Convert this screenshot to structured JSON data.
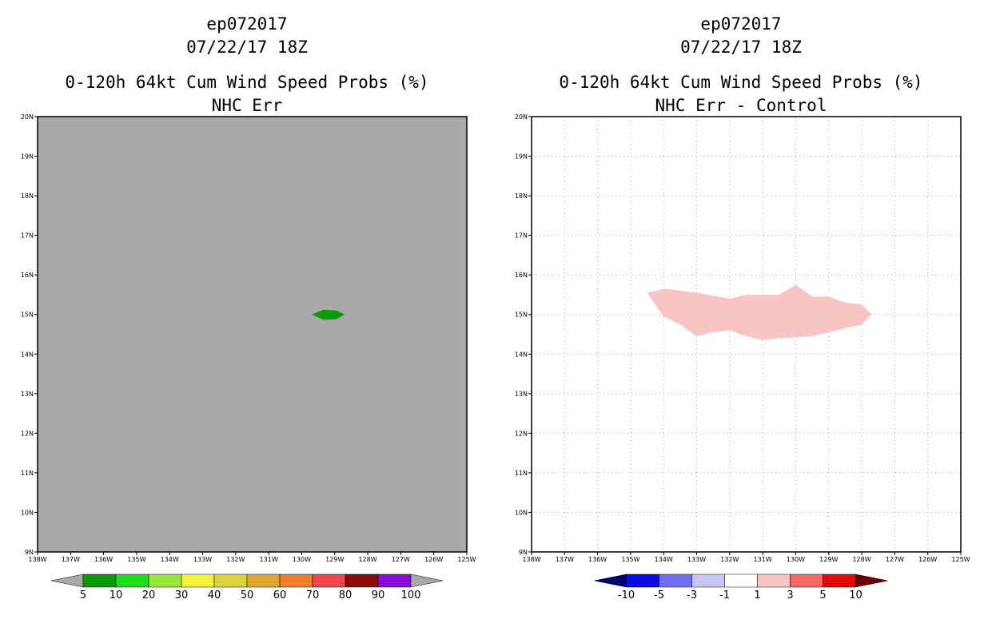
{
  "charts": [
    {
      "id": "left",
      "titles": [
        "ep072017",
        "07/22/17 18Z",
        "0-120h 64kt Cum Wind Speed Probs (%)",
        "NHC Err"
      ],
      "background": "#a9a9a9",
      "grid": false,
      "lat_labels": [
        "9N",
        "10N",
        "11N",
        "12N",
        "13N",
        "14N",
        "15N",
        "16N",
        "17N",
        "18N",
        "19N",
        "20N"
      ],
      "lon_labels": [
        "138W",
        "137W",
        "136W",
        "135W",
        "134W",
        "133W",
        "132W",
        "131W",
        "130W",
        "129W",
        "128W",
        "127W",
        "126W",
        "125W"
      ],
      "colorbar": {
        "left_arrow_color": "#a9a9a9",
        "right_arrow_color": "#a9a9a9",
        "colors": [
          "#0a9a0a",
          "#1ddd1d",
          "#9be63a",
          "#f3f33a",
          "#dcd23a",
          "#e0a832",
          "#ee7d2e",
          "#f0464e",
          "#8c0b0b",
          "#8a0cd8"
        ],
        "labels": [
          "5",
          "10",
          "20",
          "30",
          "40",
          "50",
          "60",
          "70",
          "80",
          "90",
          "100"
        ]
      }
    },
    {
      "id": "right",
      "titles": [
        "ep072017",
        "07/22/17 18Z",
        "0-120h 64kt Cum Wind Speed Probs (%)",
        "NHC Err - Control"
      ],
      "background": "#ffffff",
      "grid": true,
      "lat_labels": [
        "9N",
        "10N",
        "11N",
        "12N",
        "13N",
        "14N",
        "15N",
        "16N",
        "17N",
        "18N",
        "19N",
        "20N"
      ],
      "lon_labels": [
        "138W",
        "137W",
        "136W",
        "135W",
        "134W",
        "133W",
        "132W",
        "131W",
        "130W",
        "129W",
        "128W",
        "127W",
        "126W",
        "125W"
      ],
      "colorbar": {
        "left_arrow_color": "#00006e",
        "right_arrow_color": "#6e0000",
        "colors": [
          "#0a0ae6",
          "#6e6ef0",
          "#c6c6f6",
          "#ffffff",
          "#f9c4c4",
          "#f56868",
          "#e10b0b"
        ],
        "labels": [
          "-10",
          "-5",
          "-3",
          "-1",
          "1",
          "3",
          "5",
          "10"
        ]
      }
    }
  ],
  "chart_data": [
    {
      "type": "heatmap",
      "title": "0-120h 64kt Cum Wind Speed Probs (%) — NHC Err",
      "xlabel": "",
      "ylabel": "",
      "xlim": [
        -138,
        -125
      ],
      "ylim": [
        9,
        20
      ],
      "legend": "bottom colorbar",
      "contour_levels": [
        5,
        10,
        20,
        30,
        40,
        50,
        60,
        70,
        80,
        90,
        100
      ],
      "regions": [
        {
          "level_range": "5-10",
          "color": "#0a9a0a",
          "polygon_lonlat": [
            [
              -129.7,
              15.0
            ],
            [
              -129.35,
              15.12
            ],
            [
              -128.95,
              15.1
            ],
            [
              -128.7,
              15.0
            ],
            [
              -128.95,
              14.88
            ],
            [
              -129.35,
              14.87
            ]
          ]
        }
      ]
    },
    {
      "type": "heatmap",
      "title": "0-120h 64kt Cum Wind Speed Probs (%) — NHC Err - Control",
      "xlabel": "",
      "ylabel": "",
      "xlim": [
        -138,
        -125
      ],
      "ylim": [
        9,
        20
      ],
      "legend": "bottom colorbar",
      "contour_levels": [
        -10,
        -5,
        -3,
        -1,
        1,
        3,
        5,
        10
      ],
      "regions": [
        {
          "level_range": "1-3",
          "color": "#f9c4c4",
          "polygon_lonlat": [
            [
              -134.5,
              15.55
            ],
            [
              -133.95,
              15.65
            ],
            [
              -133.0,
              15.55
            ],
            [
              -132.0,
              15.4
            ],
            [
              -131.5,
              15.5
            ],
            [
              -130.5,
              15.5
            ],
            [
              -130.0,
              15.75
            ],
            [
              -129.5,
              15.45
            ],
            [
              -129.0,
              15.45
            ],
            [
              -128.5,
              15.3
            ],
            [
              -128.0,
              15.25
            ],
            [
              -127.7,
              15.0
            ],
            [
              -128.0,
              14.75
            ],
            [
              -129.0,
              14.55
            ],
            [
              -129.5,
              14.45
            ],
            [
              -130.5,
              14.4
            ],
            [
              -131.0,
              14.35
            ],
            [
              -131.5,
              14.45
            ],
            [
              -132.0,
              14.6
            ],
            [
              -132.5,
              14.55
            ],
            [
              -133.0,
              14.45
            ],
            [
              -133.5,
              14.75
            ],
            [
              -134.0,
              14.95
            ],
            [
              -134.3,
              15.3
            ]
          ]
        }
      ]
    }
  ]
}
